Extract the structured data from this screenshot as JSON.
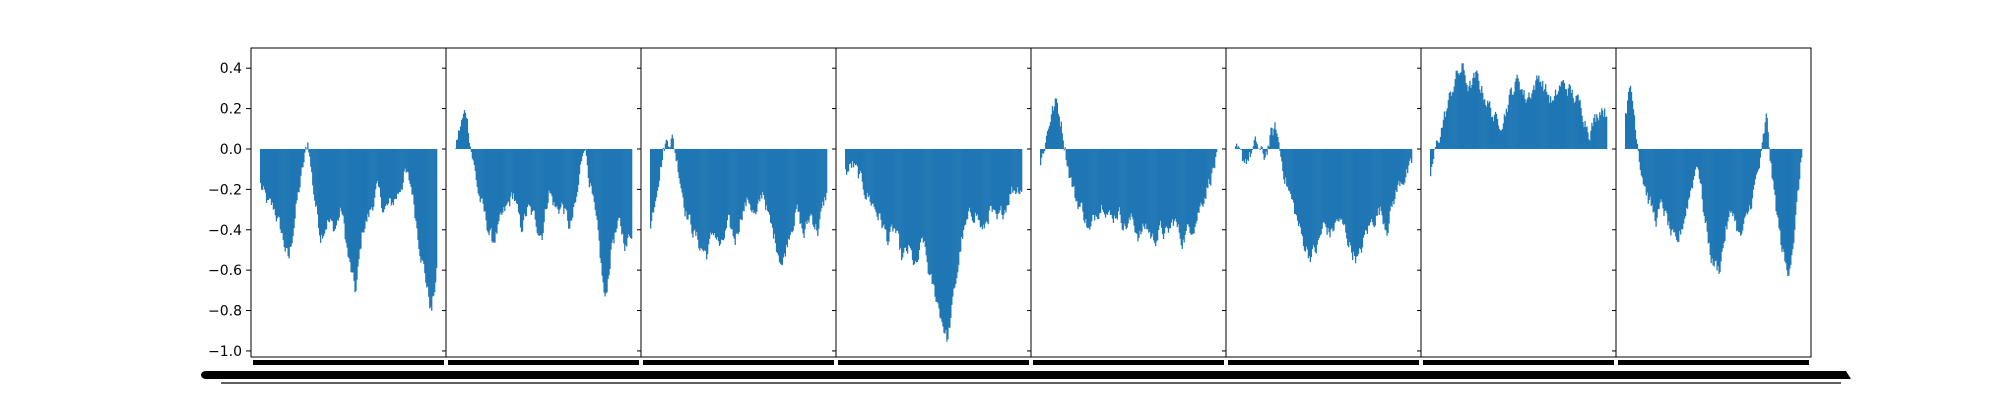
{
  "chart_data": {
    "type": "bar",
    "title": "",
    "xlabel": "",
    "ylabel": "",
    "ylim": [
      -1.03,
      0.5
    ],
    "y_ticks": [
      0.4,
      0.2,
      0.0,
      -0.2,
      -0.4,
      -0.6,
      -0.8,
      -1.0
    ],
    "y_tick_labels": [
      "0.4",
      "0.2",
      "0.0",
      "−0.2",
      "−0.4",
      "−0.6",
      "−0.8",
      "−1.0"
    ],
    "grid": false,
    "legend": "none",
    "bar_color": "#1f77b4",
    "x_tick_labels_visible": false,
    "panels": [
      {
        "profile": [
          [
            0.0,
            -0.18
          ],
          [
            0.04,
            -0.28
          ],
          [
            0.08,
            -0.3
          ],
          [
            0.12,
            -0.42
          ],
          [
            0.16,
            -0.56
          ],
          [
            0.2,
            -0.3
          ],
          [
            0.24,
            -0.1
          ],
          [
            0.27,
            0.04
          ],
          [
            0.3,
            -0.2
          ],
          [
            0.34,
            -0.42
          ],
          [
            0.38,
            -0.35
          ],
          [
            0.42,
            -0.4
          ],
          [
            0.46,
            -0.3
          ],
          [
            0.5,
            -0.55
          ],
          [
            0.54,
            -0.72
          ],
          [
            0.58,
            -0.4
          ],
          [
            0.62,
            -0.32
          ],
          [
            0.66,
            -0.2
          ],
          [
            0.7,
            -0.3
          ],
          [
            0.74,
            -0.28
          ],
          [
            0.78,
            -0.22
          ],
          [
            0.82,
            -0.12
          ],
          [
            0.86,
            -0.2
          ],
          [
            0.9,
            -0.45
          ],
          [
            0.94,
            -0.65
          ],
          [
            0.97,
            -0.81
          ],
          [
            1.0,
            -0.62
          ]
        ]
      },
      {
        "profile": [
          [
            0.0,
            0.02
          ],
          [
            0.03,
            0.12
          ],
          [
            0.06,
            0.19
          ],
          [
            0.09,
            0.0
          ],
          [
            0.13,
            -0.22
          ],
          [
            0.17,
            -0.35
          ],
          [
            0.21,
            -0.46
          ],
          [
            0.25,
            -0.38
          ],
          [
            0.29,
            -0.3
          ],
          [
            0.33,
            -0.22
          ],
          [
            0.37,
            -0.4
          ],
          [
            0.41,
            -0.3
          ],
          [
            0.45,
            -0.35
          ],
          [
            0.49,
            -0.42
          ],
          [
            0.53,
            -0.2
          ],
          [
            0.57,
            -0.3
          ],
          [
            0.61,
            -0.28
          ],
          [
            0.65,
            -0.4
          ],
          [
            0.69,
            -0.25
          ],
          [
            0.73,
            0.05
          ],
          [
            0.77,
            -0.2
          ],
          [
            0.81,
            -0.45
          ],
          [
            0.85,
            -0.77
          ],
          [
            0.89,
            -0.45
          ],
          [
            0.93,
            -0.38
          ],
          [
            0.97,
            -0.48
          ],
          [
            1.0,
            -0.4
          ]
        ]
      },
      {
        "profile": [
          [
            0.0,
            -0.4
          ],
          [
            0.04,
            -0.15
          ],
          [
            0.08,
            0.02
          ],
          [
            0.12,
            0.07
          ],
          [
            0.16,
            -0.1
          ],
          [
            0.2,
            -0.3
          ],
          [
            0.24,
            -0.4
          ],
          [
            0.28,
            -0.48
          ],
          [
            0.32,
            -0.52
          ],
          [
            0.36,
            -0.4
          ],
          [
            0.4,
            -0.5
          ],
          [
            0.44,
            -0.38
          ],
          [
            0.48,
            -0.45
          ],
          [
            0.52,
            -0.3
          ],
          [
            0.56,
            -0.25
          ],
          [
            0.6,
            -0.35
          ],
          [
            0.64,
            -0.2
          ],
          [
            0.68,
            -0.38
          ],
          [
            0.72,
            -0.48
          ],
          [
            0.75,
            -0.57
          ],
          [
            0.79,
            -0.4
          ],
          [
            0.83,
            -0.3
          ],
          [
            0.87,
            -0.43
          ],
          [
            0.91,
            -0.32
          ],
          [
            0.95,
            -0.4
          ],
          [
            1.0,
            -0.22
          ]
        ]
      },
      {
        "profile": [
          [
            0.0,
            -0.12
          ],
          [
            0.04,
            -0.08
          ],
          [
            0.08,
            -0.15
          ],
          [
            0.12,
            -0.22
          ],
          [
            0.16,
            -0.28
          ],
          [
            0.2,
            -0.35
          ],
          [
            0.24,
            -0.45
          ],
          [
            0.28,
            -0.4
          ],
          [
            0.32,
            -0.55
          ],
          [
            0.36,
            -0.5
          ],
          [
            0.4,
            -0.6
          ],
          [
            0.44,
            -0.45
          ],
          [
            0.48,
            -0.65
          ],
          [
            0.52,
            -0.75
          ],
          [
            0.55,
            -0.85
          ],
          [
            0.58,
            -0.95
          ],
          [
            0.62,
            -0.7
          ],
          [
            0.66,
            -0.45
          ],
          [
            0.7,
            -0.35
          ],
          [
            0.74,
            -0.3
          ],
          [
            0.78,
            -0.42
          ],
          [
            0.82,
            -0.3
          ],
          [
            0.86,
            -0.38
          ],
          [
            0.9,
            -0.3
          ],
          [
            0.94,
            -0.2
          ],
          [
            1.0,
            -0.18
          ]
        ]
      },
      {
        "profile": [
          [
            0.0,
            -0.08
          ],
          [
            0.03,
            0.05
          ],
          [
            0.06,
            0.18
          ],
          [
            0.09,
            0.23
          ],
          [
            0.12,
            0.12
          ],
          [
            0.16,
            -0.1
          ],
          [
            0.2,
            -0.25
          ],
          [
            0.24,
            -0.3
          ],
          [
            0.28,
            -0.42
          ],
          [
            0.32,
            -0.3
          ],
          [
            0.36,
            -0.25
          ],
          [
            0.4,
            -0.35
          ],
          [
            0.44,
            -0.3
          ],
          [
            0.48,
            -0.38
          ],
          [
            0.52,
            -0.35
          ],
          [
            0.56,
            -0.43
          ],
          [
            0.6,
            -0.38
          ],
          [
            0.64,
            -0.45
          ],
          [
            0.68,
            -0.4
          ],
          [
            0.72,
            -0.43
          ],
          [
            0.76,
            -0.35
          ],
          [
            0.8,
            -0.45
          ],
          [
            0.84,
            -0.4
          ],
          [
            0.88,
            -0.35
          ],
          [
            0.92,
            -0.25
          ],
          [
            0.96,
            -0.15
          ],
          [
            1.0,
            -0.05
          ]
        ]
      },
      {
        "profile": [
          [
            0.0,
            -0.02
          ],
          [
            0.04,
            -0.06
          ],
          [
            0.08,
            -0.03
          ],
          [
            0.12,
            0.02
          ],
          [
            0.16,
            -0.05
          ],
          [
            0.2,
            0.06
          ],
          [
            0.23,
            0.1
          ],
          [
            0.26,
            -0.05
          ],
          [
            0.3,
            -0.2
          ],
          [
            0.34,
            -0.32
          ],
          [
            0.38,
            -0.45
          ],
          [
            0.42,
            -0.52
          ],
          [
            0.46,
            -0.5
          ],
          [
            0.5,
            -0.38
          ],
          [
            0.54,
            -0.42
          ],
          [
            0.58,
            -0.35
          ],
          [
            0.62,
            -0.4
          ],
          [
            0.66,
            -0.5
          ],
          [
            0.7,
            -0.55
          ],
          [
            0.74,
            -0.42
          ],
          [
            0.78,
            -0.35
          ],
          [
            0.82,
            -0.3
          ],
          [
            0.86,
            -0.38
          ],
          [
            0.9,
            -0.25
          ],
          [
            0.94,
            -0.15
          ],
          [
            1.0,
            -0.1
          ]
        ]
      },
      {
        "profile": [
          [
            0.0,
            -0.12
          ],
          [
            0.03,
            0.0
          ],
          [
            0.06,
            0.1
          ],
          [
            0.1,
            0.22
          ],
          [
            0.14,
            0.35
          ],
          [
            0.18,
            0.4
          ],
          [
            0.22,
            0.3
          ],
          [
            0.26,
            0.35
          ],
          [
            0.3,
            0.28
          ],
          [
            0.34,
            0.2
          ],
          [
            0.38,
            0.12
          ],
          [
            0.42,
            0.18
          ],
          [
            0.46,
            0.28
          ],
          [
            0.5,
            0.35
          ],
          [
            0.54,
            0.25
          ],
          [
            0.58,
            0.3
          ],
          [
            0.62,
            0.36
          ],
          [
            0.66,
            0.28
          ],
          [
            0.7,
            0.22
          ],
          [
            0.74,
            0.32
          ],
          [
            0.78,
            0.3
          ],
          [
            0.82,
            0.25
          ],
          [
            0.86,
            0.2
          ],
          [
            0.9,
            0.1
          ],
          [
            0.94,
            0.15
          ],
          [
            0.97,
            0.22
          ],
          [
            1.0,
            0.18
          ]
        ]
      },
      {
        "profile": [
          [
            0.0,
            0.2
          ],
          [
            0.03,
            0.3
          ],
          [
            0.06,
            0.1
          ],
          [
            0.09,
            -0.1
          ],
          [
            0.13,
            -0.25
          ],
          [
            0.17,
            -0.35
          ],
          [
            0.21,
            -0.28
          ],
          [
            0.25,
            -0.4
          ],
          [
            0.29,
            -0.5
          ],
          [
            0.33,
            -0.35
          ],
          [
            0.37,
            -0.2
          ],
          [
            0.41,
            -0.05
          ],
          [
            0.45,
            -0.35
          ],
          [
            0.49,
            -0.55
          ],
          [
            0.53,
            -0.6
          ],
          [
            0.57,
            -0.4
          ],
          [
            0.61,
            -0.3
          ],
          [
            0.65,
            -0.45
          ],
          [
            0.69,
            -0.35
          ],
          [
            0.73,
            -0.2
          ],
          [
            0.77,
            -0.05
          ],
          [
            0.8,
            0.15
          ],
          [
            0.84,
            -0.2
          ],
          [
            0.88,
            -0.45
          ],
          [
            0.92,
            -0.63
          ],
          [
            0.96,
            -0.4
          ],
          [
            1.0,
            -0.05
          ]
        ]
      }
    ]
  }
}
